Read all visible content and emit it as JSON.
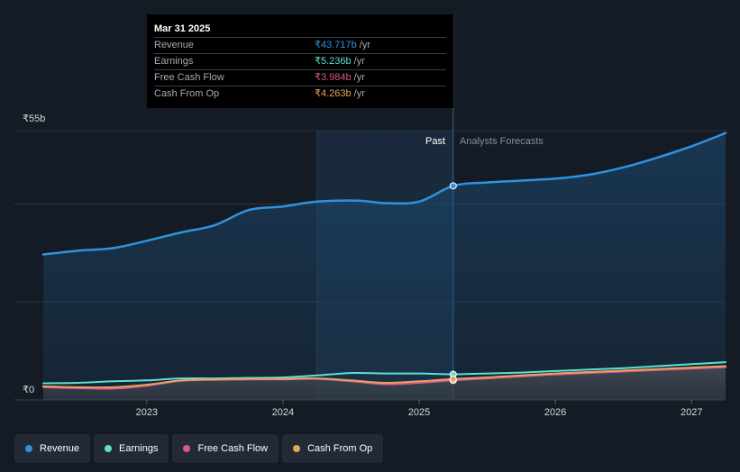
{
  "chart_data": {
    "type": "area",
    "x_unit": "year",
    "x_domain": [
      2022.24,
      2027.25
    ],
    "ylim": [
      0,
      55
    ],
    "y_ticks": [
      {
        "value": 55,
        "label": "₹55b"
      },
      {
        "value": 0,
        "label": "₹0"
      }
    ],
    "gridlines": [
      55,
      40,
      20
    ],
    "x_ticks": [
      {
        "value": 2023,
        "label": "2023"
      },
      {
        "value": 2024,
        "label": "2024"
      },
      {
        "value": 2025,
        "label": "2025"
      },
      {
        "value": 2026,
        "label": "2026"
      },
      {
        "value": 2027,
        "label": "2027"
      }
    ],
    "past_region": {
      "start": 2024.25,
      "end": 2025.25
    },
    "divider_x": 2025.25,
    "past_label": "Past",
    "forecast_label": "Analysts Forecasts",
    "series": [
      {
        "name": "Revenue",
        "color": "#2f93e0",
        "fill": true,
        "points": [
          [
            2022.24,
            29.7
          ],
          [
            2022.5,
            30.5
          ],
          [
            2022.75,
            31.0
          ],
          [
            2023.0,
            32.5
          ],
          [
            2023.25,
            34.2
          ],
          [
            2023.5,
            35.7
          ],
          [
            2023.75,
            38.8
          ],
          [
            2024.0,
            39.5
          ],
          [
            2024.25,
            40.5
          ],
          [
            2024.55,
            40.7
          ],
          [
            2024.75,
            40.2
          ],
          [
            2025.0,
            40.5
          ],
          [
            2025.25,
            43.717
          ],
          [
            2025.5,
            44.4
          ],
          [
            2025.75,
            44.8
          ],
          [
            2026.0,
            45.2
          ],
          [
            2026.25,
            46.0
          ],
          [
            2026.5,
            47.5
          ],
          [
            2026.75,
            49.5
          ],
          [
            2027.0,
            51.8
          ],
          [
            2027.25,
            54.5
          ]
        ]
      },
      {
        "name": "Earnings",
        "color": "#5ce1d4",
        "fill": false,
        "points": [
          [
            2022.24,
            3.4
          ],
          [
            2022.5,
            3.5
          ],
          [
            2022.75,
            3.8
          ],
          [
            2023.0,
            4.0
          ],
          [
            2023.25,
            4.4
          ],
          [
            2023.5,
            4.4
          ],
          [
            2023.75,
            4.5
          ],
          [
            2024.0,
            4.6
          ],
          [
            2024.25,
            5.0
          ],
          [
            2024.5,
            5.5
          ],
          [
            2024.75,
            5.4
          ],
          [
            2025.0,
            5.4
          ],
          [
            2025.25,
            5.236
          ],
          [
            2025.5,
            5.4
          ],
          [
            2025.75,
            5.6
          ],
          [
            2026.0,
            5.9
          ],
          [
            2026.25,
            6.2
          ],
          [
            2026.5,
            6.5
          ],
          [
            2026.75,
            6.9
          ],
          [
            2027.0,
            7.3
          ],
          [
            2027.25,
            7.7
          ]
        ]
      },
      {
        "name": "Free Cash Flow",
        "color": "#d6588d",
        "fill": false,
        "points": [
          [
            2022.24,
            2.6
          ],
          [
            2022.5,
            2.4
          ],
          [
            2022.75,
            2.3
          ],
          [
            2023.0,
            2.9
          ],
          [
            2023.25,
            3.9
          ],
          [
            2023.5,
            4.1
          ],
          [
            2023.75,
            4.2
          ],
          [
            2024.0,
            4.2
          ],
          [
            2024.25,
            4.3
          ],
          [
            2024.5,
            3.8
          ],
          [
            2024.75,
            3.2
          ],
          [
            2025.0,
            3.5
          ],
          [
            2025.25,
            3.984
          ],
          [
            2025.5,
            4.4
          ],
          [
            2025.75,
            4.8
          ],
          [
            2026.0,
            5.2
          ],
          [
            2026.25,
            5.5
          ],
          [
            2026.5,
            5.8
          ],
          [
            2026.75,
            6.1
          ],
          [
            2027.0,
            6.4
          ],
          [
            2027.25,
            6.7
          ]
        ]
      },
      {
        "name": "Cash From Op",
        "color": "#e6a55d",
        "fill": false,
        "points": [
          [
            2022.24,
            2.8
          ],
          [
            2022.5,
            2.6
          ],
          [
            2022.75,
            2.6
          ],
          [
            2023.0,
            3.1
          ],
          [
            2023.25,
            4.0
          ],
          [
            2023.5,
            4.2
          ],
          [
            2023.75,
            4.3
          ],
          [
            2024.0,
            4.3
          ],
          [
            2024.25,
            4.4
          ],
          [
            2024.5,
            4.0
          ],
          [
            2024.75,
            3.5
          ],
          [
            2025.0,
            3.8
          ],
          [
            2025.25,
            4.263
          ],
          [
            2025.5,
            4.6
          ],
          [
            2025.75,
            5.0
          ],
          [
            2026.0,
            5.4
          ],
          [
            2026.25,
            5.7
          ],
          [
            2026.5,
            6.0
          ],
          [
            2026.75,
            6.3
          ],
          [
            2027.0,
            6.6
          ],
          [
            2027.25,
            6.9
          ]
        ]
      }
    ]
  },
  "tooltip": {
    "date": "Mar 31 2025",
    "rows": [
      {
        "label": "Revenue",
        "value": "₹43.717b",
        "unit": "/yr",
        "color": "#2f93e0"
      },
      {
        "label": "Earnings",
        "value": "₹5.236b",
        "unit": "/yr",
        "color": "#5ce1d4"
      },
      {
        "label": "Free Cash Flow",
        "value": "₹3.984b",
        "unit": "/yr",
        "color": "#d6588d"
      },
      {
        "label": "Cash From Op",
        "value": "₹4.263b",
        "unit": "/yr",
        "color": "#e6a55d"
      }
    ]
  },
  "legend": [
    {
      "label": "Revenue",
      "color": "#2f93e0"
    },
    {
      "label": "Earnings",
      "color": "#5ce1d4"
    },
    {
      "label": "Free Cash Flow",
      "color": "#d6588d"
    },
    {
      "label": "Cash From Op",
      "color": "#e6a55d"
    }
  ]
}
